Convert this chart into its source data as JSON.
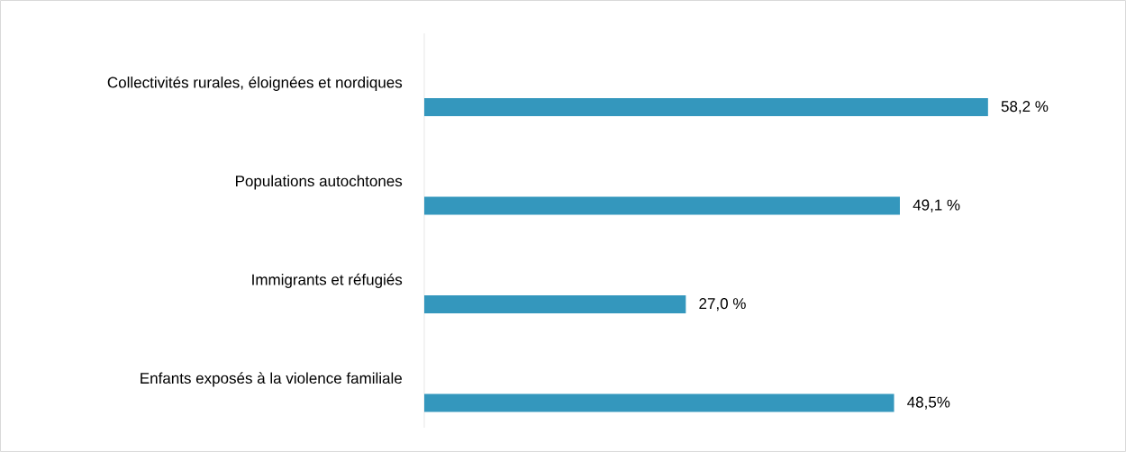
{
  "chart_data": {
    "type": "bar",
    "orientation": "horizontal",
    "categories": [
      "Collectivités rurales, éloignées et nordiques",
      "Populations autochtones",
      "Immigrants et réfugiés",
      "Enfants exposés à la violence familiale"
    ],
    "values": [
      58.2,
      49.1,
      27.0,
      48.5
    ],
    "value_labels": [
      "58,2 %",
      "49,1 %",
      "27,0 %",
      "48,5%"
    ],
    "color": "#3497bd"
  }
}
